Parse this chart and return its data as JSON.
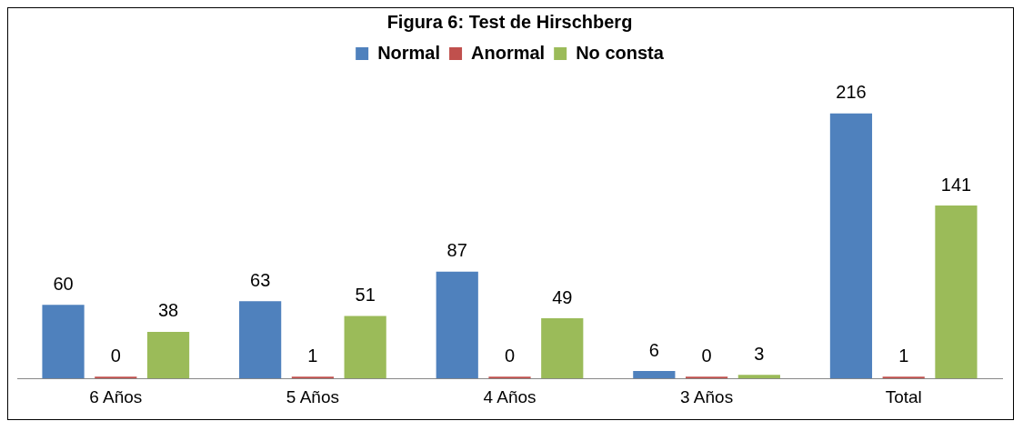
{
  "chart_data": {
    "type": "bar",
    "title": "Figura 6: Test de Hirschberg",
    "categories": [
      "6 Años",
      "5 Años",
      "4 Años",
      "3 Años",
      "Total"
    ],
    "series": [
      {
        "name": "Normal",
        "color": "#4f81bd",
        "values": [
          60,
          63,
          87,
          6,
          216
        ]
      },
      {
        "name": "Anormal",
        "color": "#c0504d",
        "values": [
          0,
          1,
          0,
          0,
          1
        ]
      },
      {
        "name": "No consta",
        "color": "#9bbb59",
        "values": [
          38,
          51,
          49,
          3,
          141
        ]
      }
    ],
    "data_labels": true,
    "legend": "top",
    "grid": false
  }
}
